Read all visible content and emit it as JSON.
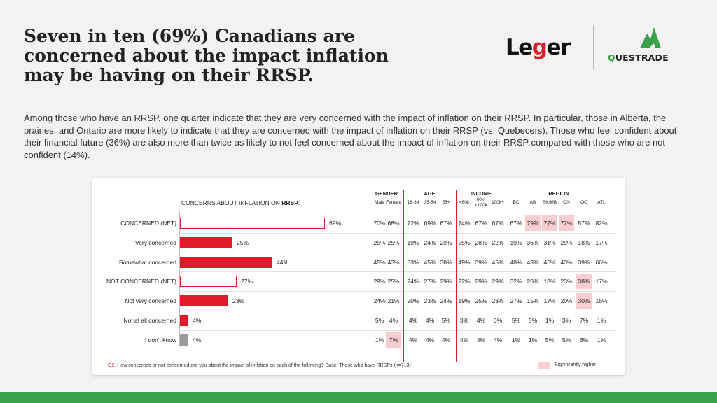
{
  "headline": [
    "Seven in ten (69%) Canadians are",
    "concerned about the impact inflation",
    "may be having on their RRSP."
  ],
  "intro": "Among those who have an RRSP, one quarter indicate that they are very concerned with the impact of inflation on their RRSP. In particular, those in Alberta, the prairies, and Ontario are more likely to indicate that they are concerned with the impact of inflation on their RRSP (vs. Quebecers). Those who feel confident about their financial future (36%) are also more than twice as likely to not feel concerned about the impact of inflation on their RRSP compared with those who are not confident (14%).",
  "logos": {
    "leger_a": "Le",
    "leger_g": "g",
    "leger_b": "er",
    "questrade_a": "Q",
    "questrade_b": "UESTRADE"
  },
  "colors": {
    "accent_red": "#e21b2b",
    "highlight_pink": "#f7cdd1",
    "brand_green": "#3aa14a",
    "grey_bar": "#9a9a9a"
  },
  "chart_data": {
    "type": "bar",
    "orientation": "horizontal",
    "title_prefix": "CONCERNS ABOUT INFLATION ON ",
    "title_bold": "RRSP",
    "title_suffix": ":",
    "categories": [
      "CONCERNED (NET)",
      "Very concerned",
      "Somewhat concerned",
      "NOT CONCERNED (NET)",
      "Not very concerned",
      "Not at all concerned",
      "I don't know"
    ],
    "values": [
      69,
      25,
      44,
      27,
      23,
      4,
      4
    ],
    "value_labels": [
      "69%",
      "25%",
      "44%",
      "27%",
      "23%",
      "4%",
      "4%"
    ],
    "bar_styles": [
      "outline",
      "solid",
      "solid",
      "outline",
      "solid",
      "solid",
      "grey"
    ],
    "xlim": [
      0,
      100
    ],
    "table": {
      "groups": [
        "GENDER",
        "AGE",
        "INCOME",
        "REGION"
      ],
      "columns": [
        "Male",
        "Female",
        "18-34",
        "35-54",
        "55+",
        "<60k",
        "60k-\n<100k",
        "100k+",
        "BC",
        "AB",
        "SK/MB",
        "ON",
        "QC",
        "ATL"
      ],
      "rows": [
        [
          "70%",
          "68%",
          "72%",
          "69%",
          "67%",
          "74%",
          "67%",
          "67%",
          "67%",
          "79%",
          "77%",
          "72%",
          "57%",
          "82%"
        ],
        [
          "25%",
          "25%",
          "19%",
          "24%",
          "29%",
          "25%",
          "28%",
          "22%",
          "19%",
          "36%",
          "31%",
          "29%",
          "18%",
          "17%"
        ],
        [
          "45%",
          "43%",
          "53%",
          "45%",
          "38%",
          "49%",
          "39%",
          "45%",
          "48%",
          "43%",
          "46%",
          "43%",
          "39%",
          "66%"
        ],
        [
          "29%",
          "25%",
          "24%",
          "27%",
          "29%",
          "22%",
          "29%",
          "29%",
          "32%",
          "20%",
          "18%",
          "23%",
          "38%",
          "17%"
        ],
        [
          "24%",
          "21%",
          "20%",
          "23%",
          "24%",
          "19%",
          "25%",
          "23%",
          "27%",
          "15%",
          "17%",
          "20%",
          "30%",
          "16%"
        ],
        [
          "5%",
          "4%",
          "4%",
          "4%",
          "5%",
          "3%",
          "4%",
          "6%",
          "5%",
          "5%",
          "1%",
          "3%",
          "7%",
          "1%"
        ],
        [
          "1%",
          "7%",
          "4%",
          "4%",
          "4%",
          "4%",
          "4%",
          "4%",
          "1%",
          "1%",
          "5%",
          "5%",
          "6%",
          "1%"
        ]
      ],
      "highlighted": [
        [
          0,
          9
        ],
        [
          0,
          10
        ],
        [
          0,
          11
        ],
        [
          3,
          12
        ],
        [
          4,
          12
        ],
        [
          6,
          1
        ]
      ]
    }
  },
  "footnote": {
    "qnum": "Q2.",
    "text": " How concerned or not concerned are you about the impact of inflation on each of the following? Base: Those who have RRSPs (n=713)"
  },
  "legend": {
    "label": "Significantly higher"
  }
}
